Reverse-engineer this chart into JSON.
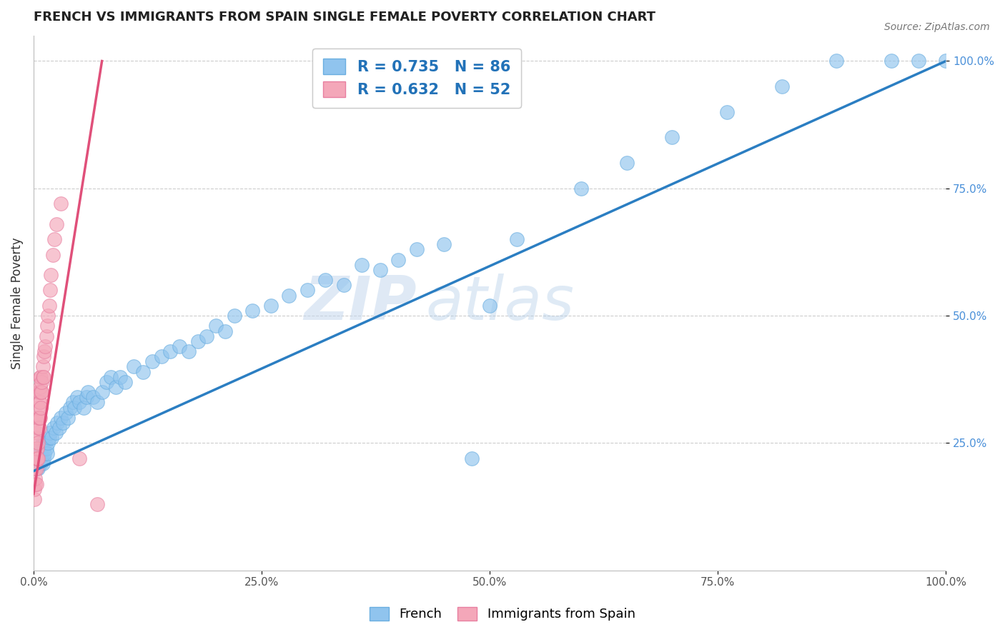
{
  "title": "FRENCH VS IMMIGRANTS FROM SPAIN SINGLE FEMALE POVERTY CORRELATION CHART",
  "source_text": "Source: ZipAtlas.com",
  "ylabel": "Single Female Poverty",
  "xlabel": "",
  "xlim": [
    0.0,
    1.0
  ],
  "ylim": [
    0.0,
    1.05
  ],
  "xtick_labels": [
    "0.0%",
    "25.0%",
    "50.0%",
    "75.0%",
    "100.0%"
  ],
  "xtick_positions": [
    0.0,
    0.25,
    0.5,
    0.75,
    1.0
  ],
  "ytick_labels": [
    "25.0%",
    "50.0%",
    "75.0%",
    "100.0%"
  ],
  "ytick_positions": [
    0.25,
    0.5,
    0.75,
    1.0
  ],
  "grid_color": "#cccccc",
  "watermark_zip": "ZIP",
  "watermark_atlas": "atlas",
  "french_color": "#90C4EE",
  "french_edge_color": "#6AAEE0",
  "spain_color": "#F4A7B9",
  "spain_edge_color": "#E87FA0",
  "french_R": 0.735,
  "french_N": 86,
  "spain_R": 0.632,
  "spain_N": 52,
  "french_line_color": "#2B7EC2",
  "spain_line_color": "#E0507A",
  "legend_color": "#2272B8",
  "ytick_color": "#4A90D9",
  "french_line_x0": 0.0,
  "french_line_y0": 0.195,
  "french_line_x1": 1.0,
  "french_line_y1": 1.0,
  "spain_line_x0": 0.0,
  "spain_line_y0": 0.15,
  "spain_line_x1": 0.075,
  "spain_line_y1": 1.0,
  "french_scatter_x": [
    0.002,
    0.003,
    0.003,
    0.004,
    0.004,
    0.005,
    0.005,
    0.006,
    0.006,
    0.007,
    0.007,
    0.008,
    0.008,
    0.009,
    0.009,
    0.01,
    0.01,
    0.011,
    0.011,
    0.012,
    0.013,
    0.014,
    0.015,
    0.016,
    0.017,
    0.018,
    0.02,
    0.022,
    0.024,
    0.026,
    0.028,
    0.03,
    0.032,
    0.035,
    0.038,
    0.04,
    0.043,
    0.045,
    0.048,
    0.05,
    0.055,
    0.058,
    0.06,
    0.065,
    0.07,
    0.075,
    0.08,
    0.085,
    0.09,
    0.095,
    0.1,
    0.11,
    0.12,
    0.13,
    0.14,
    0.15,
    0.16,
    0.17,
    0.18,
    0.19,
    0.2,
    0.21,
    0.22,
    0.24,
    0.26,
    0.28,
    0.3,
    0.32,
    0.34,
    0.36,
    0.38,
    0.4,
    0.42,
    0.45,
    0.48,
    0.5,
    0.53,
    0.6,
    0.65,
    0.7,
    0.76,
    0.82,
    0.88,
    0.94,
    0.97,
    1.0
  ],
  "french_scatter_y": [
    0.22,
    0.2,
    0.23,
    0.21,
    0.24,
    0.2,
    0.22,
    0.21,
    0.23,
    0.22,
    0.24,
    0.21,
    0.23,
    0.22,
    0.24,
    0.21,
    0.25,
    0.22,
    0.24,
    0.23,
    0.25,
    0.24,
    0.23,
    0.25,
    0.26,
    0.27,
    0.26,
    0.28,
    0.27,
    0.29,
    0.28,
    0.3,
    0.29,
    0.31,
    0.3,
    0.32,
    0.33,
    0.32,
    0.34,
    0.33,
    0.32,
    0.34,
    0.35,
    0.34,
    0.33,
    0.35,
    0.37,
    0.38,
    0.36,
    0.38,
    0.37,
    0.4,
    0.39,
    0.41,
    0.42,
    0.43,
    0.44,
    0.43,
    0.45,
    0.46,
    0.48,
    0.47,
    0.5,
    0.51,
    0.52,
    0.54,
    0.55,
    0.57,
    0.56,
    0.6,
    0.59,
    0.61,
    0.63,
    0.64,
    0.22,
    0.52,
    0.65,
    0.75,
    0.8,
    0.85,
    0.9,
    0.95,
    1.0,
    1.0,
    1.0,
    1.0
  ],
  "spain_scatter_x": [
    0.001,
    0.001,
    0.002,
    0.002,
    0.002,
    0.002,
    0.003,
    0.003,
    0.003,
    0.003,
    0.003,
    0.004,
    0.004,
    0.004,
    0.004,
    0.005,
    0.005,
    0.005,
    0.005,
    0.005,
    0.005,
    0.006,
    0.006,
    0.006,
    0.006,
    0.007,
    0.007,
    0.007,
    0.007,
    0.008,
    0.008,
    0.008,
    0.009,
    0.009,
    0.01,
    0.01,
    0.011,
    0.011,
    0.012,
    0.013,
    0.014,
    0.015,
    0.016,
    0.017,
    0.018,
    0.019,
    0.021,
    0.023,
    0.025,
    0.03,
    0.05,
    0.07
  ],
  "spain_scatter_y": [
    0.14,
    0.16,
    0.17,
    0.18,
    0.2,
    0.22,
    0.17,
    0.2,
    0.22,
    0.24,
    0.26,
    0.22,
    0.24,
    0.27,
    0.3,
    0.22,
    0.25,
    0.28,
    0.3,
    0.32,
    0.35,
    0.28,
    0.3,
    0.33,
    0.35,
    0.3,
    0.33,
    0.36,
    0.38,
    0.32,
    0.35,
    0.38,
    0.35,
    0.37,
    0.38,
    0.4,
    0.38,
    0.42,
    0.43,
    0.44,
    0.46,
    0.48,
    0.5,
    0.52,
    0.55,
    0.58,
    0.62,
    0.65,
    0.68,
    0.72,
    0.22,
    0.13
  ]
}
